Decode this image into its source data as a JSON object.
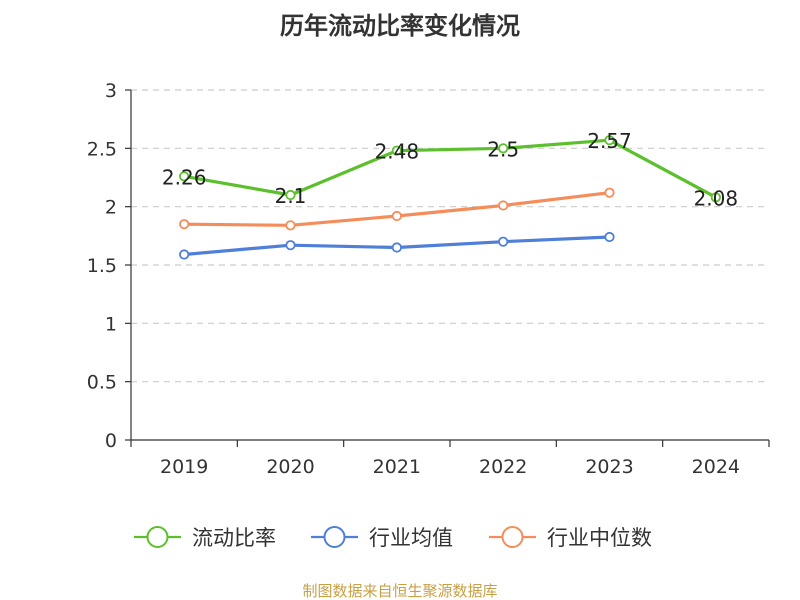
{
  "source_text": "制图数据来自恒生聚源数据库",
  "chart_data": {
    "type": "line",
    "title": "历年流动比率变化情况",
    "xlabel": "",
    "ylabel": "",
    "categories": [
      "2019",
      "2020",
      "2021",
      "2022",
      "2023",
      "2024"
    ],
    "ylim": [
      0,
      3
    ],
    "yticks": [
      "0",
      "0.5",
      "1",
      "1.5",
      "2",
      "2.5",
      "3"
    ],
    "grid": "horizontal dashed",
    "legend_position": "bottom",
    "series": [
      {
        "name": "流动比率",
        "color": "#5cc02c",
        "values": [
          2.26,
          2.1,
          2.48,
          2.5,
          2.57,
          2.08
        ],
        "labels": [
          "2.26",
          "2.1",
          "2.48",
          "2.5",
          "2.57",
          "2.08"
        ]
      },
      {
        "name": "行业均值",
        "color": "#4f7fd8",
        "values": [
          1.59,
          1.67,
          1.65,
          1.7,
          1.74,
          null
        ]
      },
      {
        "name": "行业中位数",
        "color": "#f58d5a",
        "values": [
          1.85,
          1.84,
          1.92,
          2.01,
          2.12,
          null
        ]
      }
    ]
  }
}
